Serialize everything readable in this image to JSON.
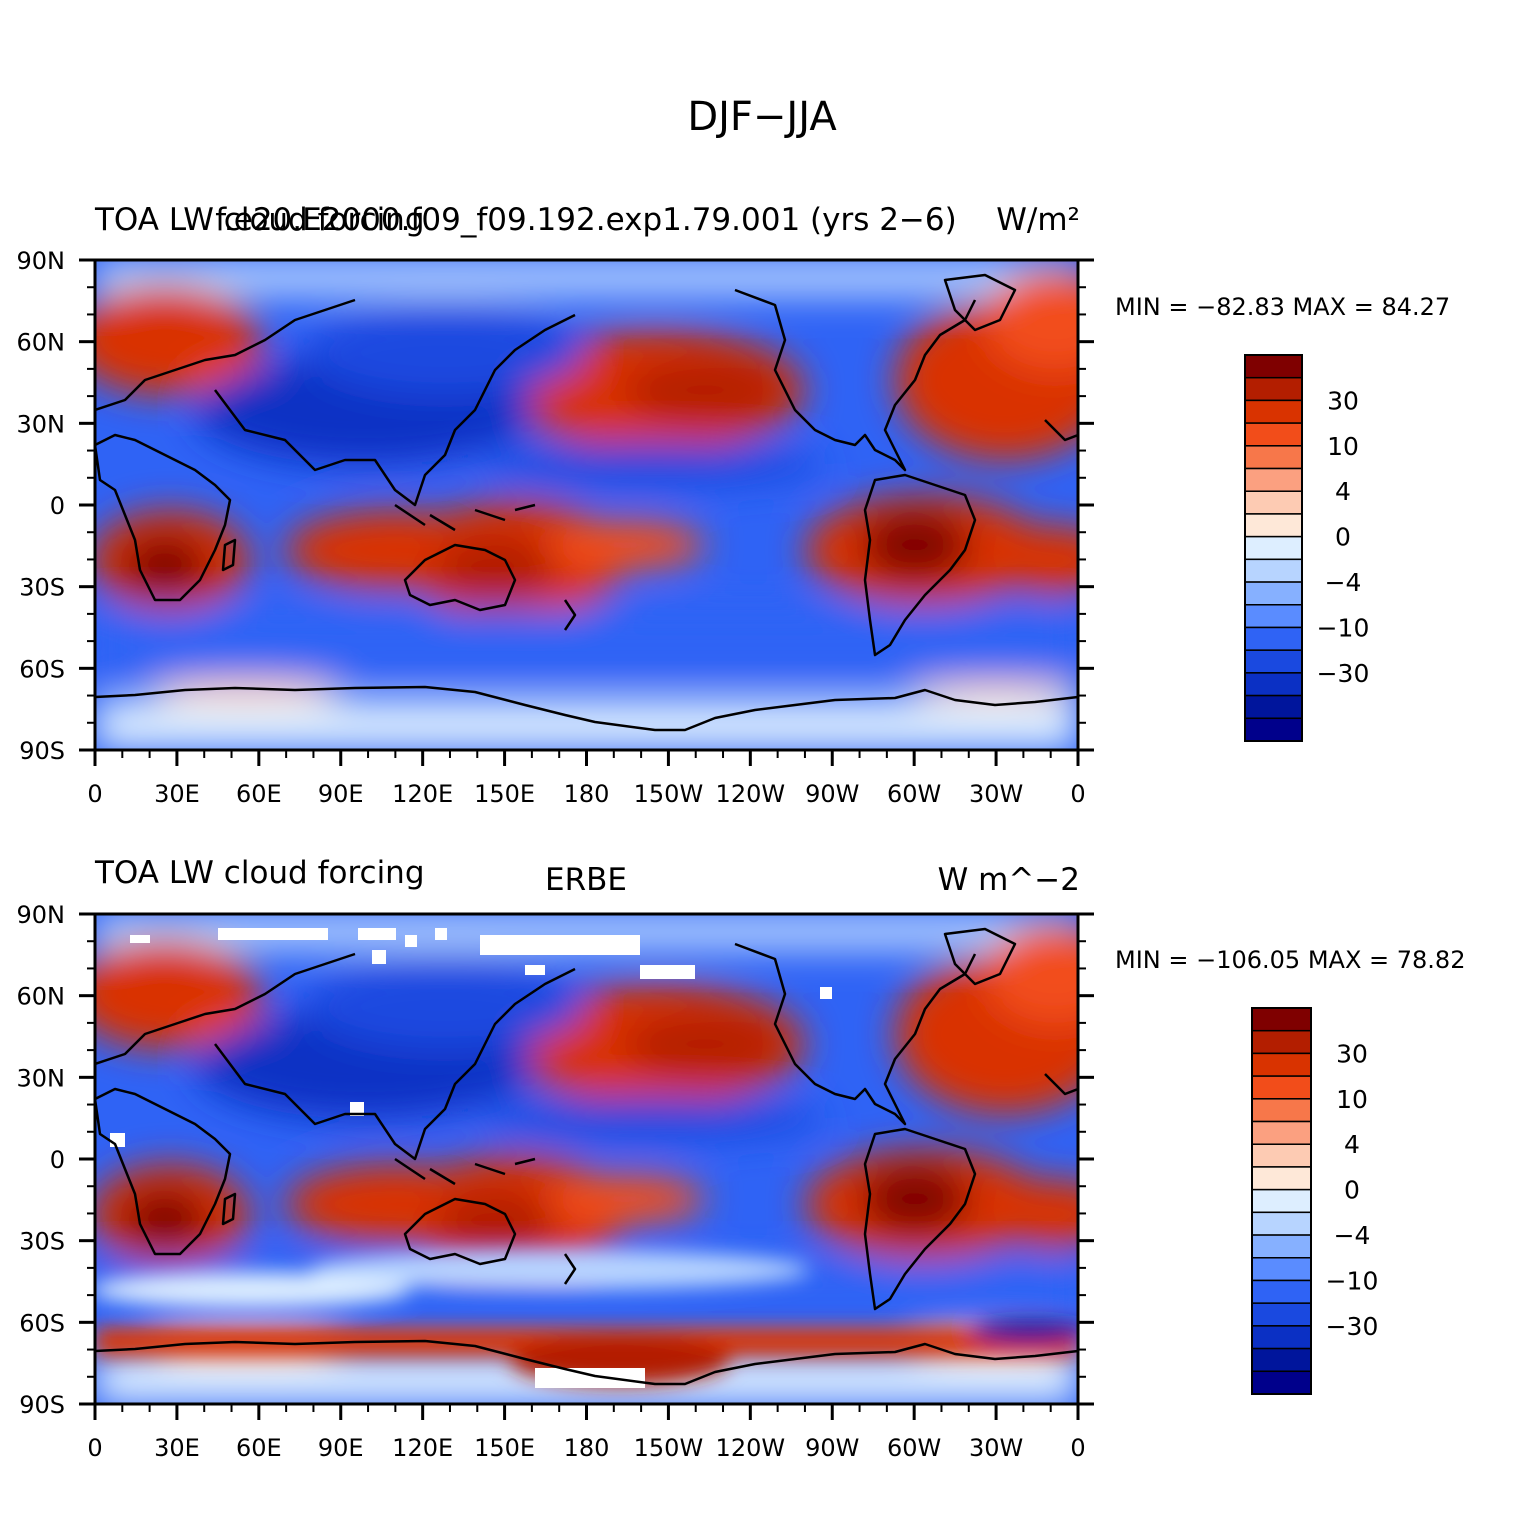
{
  "title": "DJF−JJA",
  "lat_labels": [
    "90N",
    "60N",
    "30N",
    "0",
    "30S",
    "60S",
    "90S"
  ],
  "lon_labels": [
    "0",
    "30E",
    "60E",
    "90E",
    "120E",
    "150E",
    "180",
    "150W",
    "120W",
    "90W",
    "60W",
    "30W",
    "0"
  ],
  "panels": [
    {
      "left_title": "TOA LW cloud forcing",
      "center_title": "f.e20.E2000.f09_f09.192.exp1.79.001 (yrs 2−6)",
      "right_title": "W/m²",
      "stats": "MIN = −82.83 MAX =  84.27",
      "min": -82.83,
      "max": 84.27
    },
    {
      "left_title": "TOA LW cloud forcing",
      "center_title": "ERBE",
      "right_title": "W m^−2",
      "stats": "MIN = −106.05 MAX =  78.82",
      "min": -106.05,
      "max": 78.82
    }
  ],
  "colorbar": {
    "colors": [
      "#7f0000",
      "#b31e00",
      "#d93300",
      "#f24d1a",
      "#f7774a",
      "#fba080",
      "#fdcbb3",
      "#fee8d8",
      "#ddeeff",
      "#b7d4ff",
      "#86b0ff",
      "#5a8cff",
      "#2f63f5",
      "#1a49e0",
      "#0b30c4",
      "#00159c",
      "#00008b"
    ],
    "labels": [
      "30",
      "10",
      "4",
      "0",
      "−4",
      "−10",
      "−30"
    ]
  },
  "colors": {
    "red": "#d93300",
    "blue": "#1a49e0",
    "deep_blue": "#0b30c4",
    "pale_blue": "#b7d4ff",
    "pale_red": "#fdcbb3",
    "dark_red": "#b31e00"
  }
}
